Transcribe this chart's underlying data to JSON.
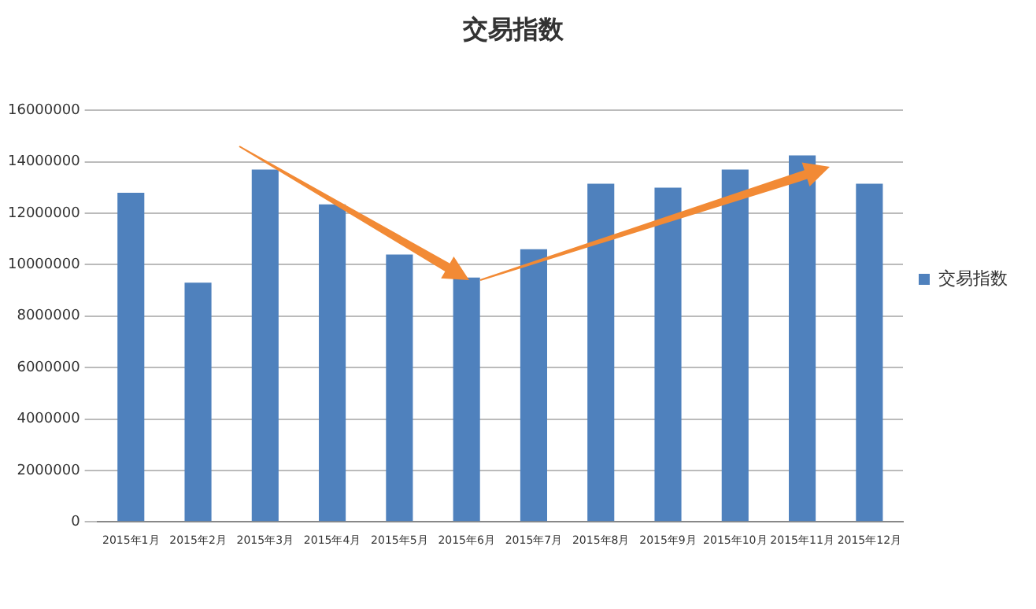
{
  "chart_data": {
    "type": "bar",
    "title": "交易指数",
    "categories": [
      "2015年1月",
      "2015年2月",
      "2015年3月",
      "2015年4月",
      "2015年5月",
      "2015年6月",
      "2015年7月",
      "2015年8月",
      "2015年9月",
      "2015年10月",
      "2015年11月",
      "2015年12月"
    ],
    "series": [
      {
        "name": "交易指数",
        "color": "#4f81bd",
        "values": [
          12800000,
          9300000,
          13700000,
          12350000,
          10400000,
          9500000,
          10600000,
          13150000,
          13000000,
          13700000,
          14250000,
          13150000
        ]
      }
    ],
    "ylim": [
      0,
      16000000
    ],
    "yticks": [
      0,
      2000000,
      4000000,
      6000000,
      8000000,
      10000000,
      12000000,
      14000000,
      16000000
    ],
    "grid": "y",
    "legend": "right"
  }
}
